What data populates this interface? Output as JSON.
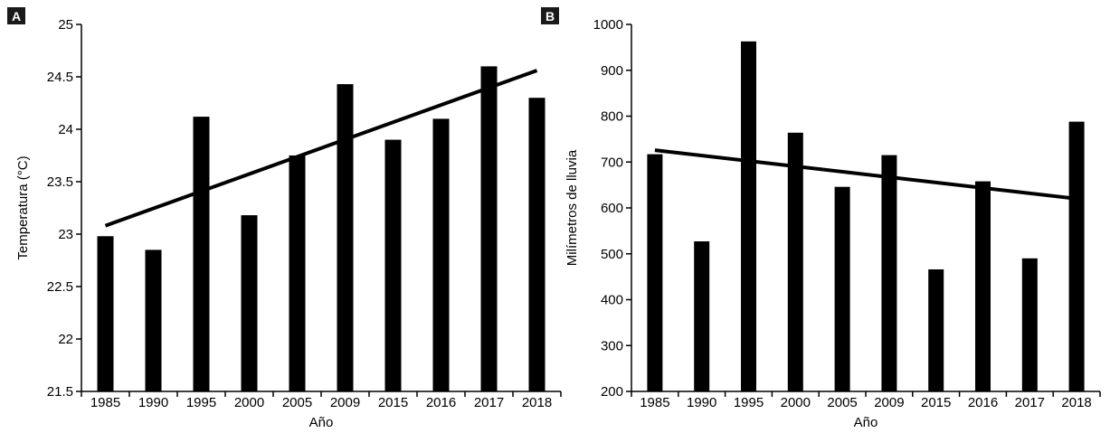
{
  "colors": {
    "bar": "#000000",
    "trend": "#000000",
    "axis": "#000000",
    "label_box": "#1a1a1a",
    "background": "#ffffff"
  },
  "chart_data": [
    {
      "panel": "A",
      "type": "bar",
      "xlabel": "Año",
      "ylabel": "Temperatura (°C)",
      "categories": [
        "1985",
        "1990",
        "1995",
        "2000",
        "2005",
        "2009",
        "2015",
        "2016",
        "2017",
        "2018"
      ],
      "values": [
        22.98,
        22.85,
        24.12,
        23.18,
        23.75,
        24.43,
        23.9,
        24.1,
        24.6,
        24.3
      ],
      "ylim": [
        21.5,
        25
      ],
      "yticks": [
        21.5,
        22,
        22.5,
        23,
        23.5,
        24,
        24.5,
        25
      ],
      "ytick_labels": [
        "21.5",
        "22",
        "22.5",
        "23",
        "23.5",
        "24",
        "24.5",
        "25"
      ],
      "trendline": {
        "start": 23.08,
        "end": 24.56
      },
      "grid": false
    },
    {
      "panel": "B",
      "type": "bar",
      "xlabel": "Año",
      "ylabel": "Milímetros de lluvia",
      "categories": [
        "1985",
        "1990",
        "1995",
        "2000",
        "2005",
        "2009",
        "2015",
        "2016",
        "2017",
        "2018"
      ],
      "values": [
        717,
        527,
        963,
        764,
        646,
        715,
        466,
        658,
        490,
        788
      ],
      "ylim": [
        200,
        1000
      ],
      "yticks": [
        200,
        300,
        400,
        500,
        600,
        700,
        800,
        900,
        1000
      ],
      "ytick_labels": [
        "200",
        "300",
        "400",
        "500",
        "600",
        "700",
        "800",
        "900",
        "1000"
      ],
      "trendline": {
        "start": 726,
        "end": 620
      },
      "grid": false
    }
  ]
}
